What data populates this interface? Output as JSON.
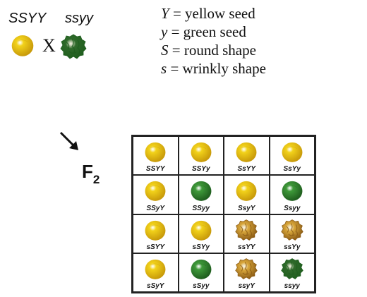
{
  "cross": {
    "parent1": {
      "genotype": "SSYY",
      "seed": "round-yellow"
    },
    "symbol": "X",
    "parent2": {
      "genotype": "ssyy",
      "seed": "wrinkled-green"
    }
  },
  "legend": [
    {
      "symbol": "Y",
      "text": " =  yellow seed"
    },
    {
      "symbol": "y",
      "text": " = green seed"
    },
    {
      "symbol": "S",
      "text": " = round shape"
    },
    {
      "symbol": "s",
      "text": " = wrinkly shape"
    }
  ],
  "generation": {
    "base": "F",
    "sub": "2"
  },
  "punnett": [
    [
      {
        "genotype": "SSYY",
        "seed": "round-yellow"
      },
      {
        "genotype": "SSYy",
        "seed": "round-yellow"
      },
      {
        "genotype": "SsYY",
        "seed": "round-yellow"
      },
      {
        "genotype": "SsYy",
        "seed": "round-yellow"
      }
    ],
    [
      {
        "genotype": "SSyY",
        "seed": "round-yellow"
      },
      {
        "genotype": "SSyy",
        "seed": "round-green"
      },
      {
        "genotype": "SsyY",
        "seed": "round-yellow"
      },
      {
        "genotype": "Ssyy",
        "seed": "round-green"
      }
    ],
    [
      {
        "genotype": "sSYY",
        "seed": "round-yellow"
      },
      {
        "genotype": "sSYy",
        "seed": "round-yellow"
      },
      {
        "genotype": "ssYY",
        "seed": "wrinkled-yellow"
      },
      {
        "genotype": "ssYy",
        "seed": "wrinkled-yellow"
      }
    ],
    [
      {
        "genotype": "sSyY",
        "seed": "round-yellow"
      },
      {
        "genotype": "sSyy",
        "seed": "round-green"
      },
      {
        "genotype": "ssyY",
        "seed": "wrinkled-yellow"
      },
      {
        "genotype": "ssyy",
        "seed": "wrinkled-green"
      }
    ]
  ],
  "colors": {
    "yellow": "#f2d21a",
    "yellow_dark": "#c89a0a",
    "green": "#3f9a3a",
    "green_dark": "#1f5e1e",
    "wrinkled_yellow": "#d8a63a",
    "wrinkled_yellow_dark": "#8a5a14",
    "wrinkled_green": "#2f6a2a"
  }
}
